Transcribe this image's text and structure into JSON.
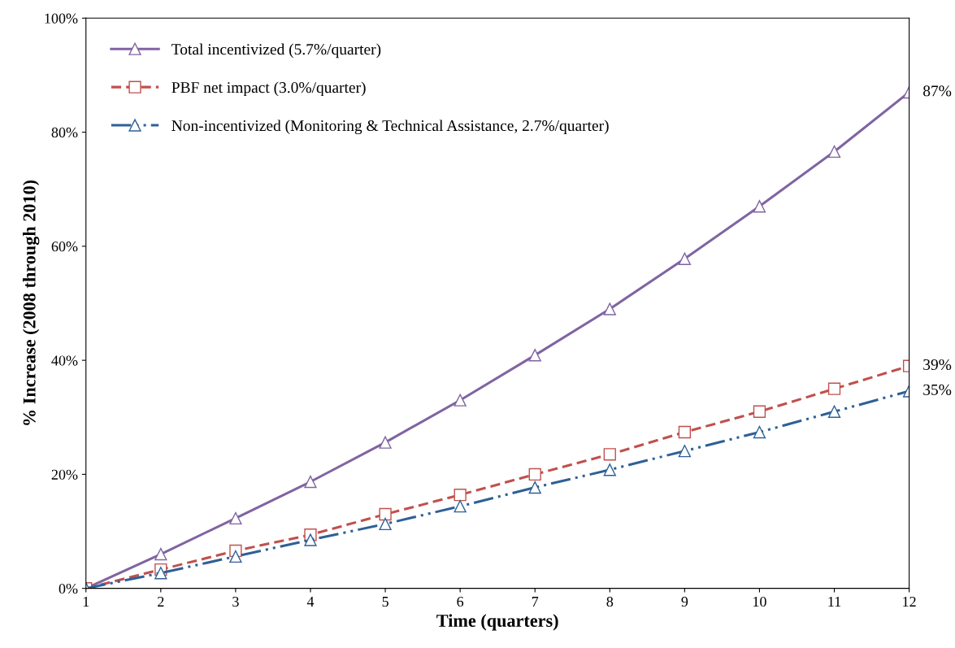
{
  "chart_data": {
    "type": "line",
    "xlabel": "Time (quarters)",
    "ylabel": "% Increase (2008 through 2010)",
    "x": [
      1,
      2,
      3,
      4,
      5,
      6,
      7,
      8,
      9,
      10,
      11,
      12
    ],
    "series": [
      {
        "name": "Total incentivized (5.7%/quarter)",
        "color": "#8064a2",
        "marker": "triangle",
        "line_style": "solid",
        "values": [
          0,
          6.0,
          12.3,
          18.7,
          25.6,
          33.0,
          40.9,
          49.0,
          57.8,
          67.0,
          76.6,
          87
        ],
        "value_labels": [
          null,
          null,
          null,
          null,
          null,
          null,
          null,
          null,
          null,
          null,
          null,
          "87%"
        ]
      },
      {
        "name": "PBF net impact (3.0%/quarter)",
        "color": "#c0504d",
        "marker": "square",
        "line_style": "dashed",
        "values": [
          0,
          3.3,
          6.6,
          9.4,
          13.0,
          16.4,
          20.0,
          23.5,
          27.4,
          31.0,
          35.0,
          39
        ],
        "value_labels": [
          null,
          null,
          null,
          null,
          null,
          null,
          null,
          null,
          null,
          null,
          null,
          "39%"
        ]
      },
      {
        "name": "Non-incentivized (Monitoring & Technical Assistance, 2.7%/quarter)",
        "color": "#2e6096",
        "marker": "triangle",
        "line_style": "dashdot",
        "values": [
          0,
          2.7,
          5.6,
          8.5,
          11.3,
          14.4,
          17.7,
          20.8,
          24.1,
          27.4,
          31.0,
          34.6
        ],
        "value_labels": [
          null,
          null,
          null,
          null,
          null,
          null,
          null,
          null,
          null,
          null,
          null,
          "35%"
        ]
      }
    ],
    "xlim": [
      1,
      12
    ],
    "xticks": [
      1,
      2,
      3,
      4,
      5,
      6,
      7,
      8,
      9,
      10,
      11,
      12
    ],
    "ylim": [
      0,
      100
    ],
    "yticks": [
      {
        "value": 0,
        "label": "0%"
      },
      {
        "value": 20,
        "label": "20%"
      },
      {
        "value": 40,
        "label": "40%"
      },
      {
        "value": 60,
        "label": "60%"
      },
      {
        "value": 80,
        "label": "80%"
      },
      {
        "value": 100,
        "label": "100%"
      }
    ],
    "grid": false,
    "legend": "top left"
  }
}
